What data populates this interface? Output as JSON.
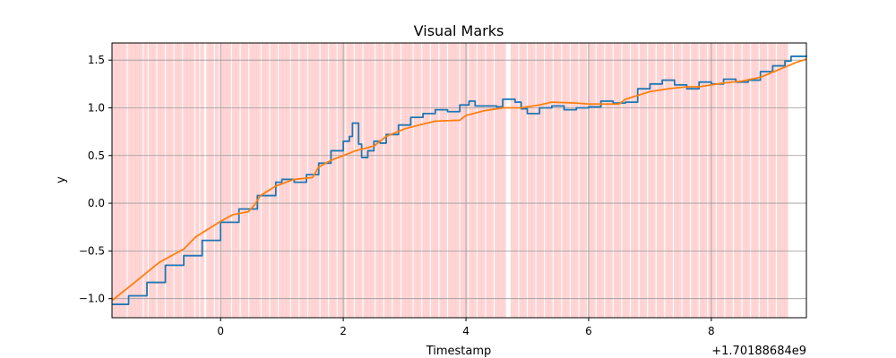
{
  "chart_data": {
    "type": "line",
    "title": "Visual Marks",
    "xlabel": "Timestamp",
    "ylabel": "y",
    "x_offset_label": "+1.70188684e9",
    "xlim": [
      -1.77,
      9.55
    ],
    "ylim": [
      -1.2,
      1.68
    ],
    "xticks": [
      0,
      2,
      4,
      6,
      8
    ],
    "xtick_labels": [
      "0",
      "2",
      "4",
      "6",
      "8"
    ],
    "yticks": [
      -1.0,
      -0.5,
      0.0,
      0.5,
      1.0,
      1.5
    ],
    "ytick_labels": [
      "−1.0",
      "−0.5",
      "0.0",
      "0.5",
      "1.0",
      "1.5"
    ],
    "grid": true,
    "mark_color": "#ffb3b3",
    "series": [
      {
        "color": "#1f77b4",
        "style": "steps",
        "points": [
          [
            -1.77,
            -1.06
          ],
          [
            -1.5,
            -0.97
          ],
          [
            -1.2,
            -0.83
          ],
          [
            -0.9,
            -0.65
          ],
          [
            -0.6,
            -0.55
          ],
          [
            -0.3,
            -0.39
          ],
          [
            0.0,
            -0.2
          ],
          [
            0.3,
            -0.06
          ],
          [
            0.6,
            0.08
          ],
          [
            0.9,
            0.22
          ],
          [
            1.0,
            0.25
          ],
          [
            1.2,
            0.22
          ],
          [
            1.4,
            0.3
          ],
          [
            1.6,
            0.42
          ],
          [
            1.8,
            0.55
          ],
          [
            2.0,
            0.65
          ],
          [
            2.1,
            0.7
          ],
          [
            2.15,
            0.84
          ],
          [
            2.22,
            0.84
          ],
          [
            2.25,
            0.62
          ],
          [
            2.3,
            0.48
          ],
          [
            2.4,
            0.55
          ],
          [
            2.5,
            0.65
          ],
          [
            2.6,
            0.63
          ],
          [
            2.7,
            0.72
          ],
          [
            2.9,
            0.82
          ],
          [
            3.1,
            0.9
          ],
          [
            3.3,
            0.94
          ],
          [
            3.5,
            0.98
          ],
          [
            3.7,
            0.96
          ],
          [
            3.9,
            1.03
          ],
          [
            4.05,
            1.07
          ],
          [
            4.15,
            1.02
          ],
          [
            4.3,
            1.02
          ],
          [
            4.5,
            1.01
          ],
          [
            4.6,
            1.09
          ],
          [
            4.8,
            1.06
          ],
          [
            4.9,
            0.99
          ],
          [
            5.0,
            0.94
          ],
          [
            5.2,
            1.0
          ],
          [
            5.4,
            1.02
          ],
          [
            5.6,
            0.98
          ],
          [
            5.8,
            1.0
          ],
          [
            6.0,
            1.01
          ],
          [
            6.2,
            1.07
          ],
          [
            6.4,
            1.05
          ],
          [
            6.6,
            1.06
          ],
          [
            6.8,
            1.2
          ],
          [
            7.0,
            1.25
          ],
          [
            7.2,
            1.29
          ],
          [
            7.4,
            1.24
          ],
          [
            7.6,
            1.2
          ],
          [
            7.8,
            1.27
          ],
          [
            8.0,
            1.25
          ],
          [
            8.2,
            1.3
          ],
          [
            8.4,
            1.27
          ],
          [
            8.6,
            1.29
          ],
          [
            8.8,
            1.38
          ],
          [
            9.0,
            1.44
          ],
          [
            9.2,
            1.49
          ],
          [
            9.3,
            1.54
          ],
          [
            9.55,
            1.55
          ]
        ]
      },
      {
        "color": "#ff7f0e",
        "style": "line",
        "points": [
          [
            -1.77,
            -1.02
          ],
          [
            -1.4,
            -0.83
          ],
          [
            -1.0,
            -0.62
          ],
          [
            -0.6,
            -0.48
          ],
          [
            -0.4,
            -0.35
          ],
          [
            -0.2,
            -0.27
          ],
          [
            0.0,
            -0.19
          ],
          [
            0.2,
            -0.12
          ],
          [
            0.45,
            -0.09
          ],
          [
            0.55,
            -0.02
          ],
          [
            0.65,
            0.08
          ],
          [
            0.9,
            0.18
          ],
          [
            1.2,
            0.25
          ],
          [
            1.5,
            0.27
          ],
          [
            1.6,
            0.38
          ],
          [
            1.8,
            0.45
          ],
          [
            2.0,
            0.5
          ],
          [
            2.2,
            0.55
          ],
          [
            2.5,
            0.6
          ],
          [
            2.7,
            0.7
          ],
          [
            3.0,
            0.78
          ],
          [
            3.3,
            0.83
          ],
          [
            3.5,
            0.86
          ],
          [
            3.9,
            0.87
          ],
          [
            4.0,
            0.92
          ],
          [
            4.3,
            0.97
          ],
          [
            4.6,
            1.0
          ],
          [
            4.9,
            1.0
          ],
          [
            5.2,
            1.03
          ],
          [
            5.4,
            1.06
          ],
          [
            5.8,
            1.05
          ],
          [
            6.0,
            1.04
          ],
          [
            6.5,
            1.04
          ],
          [
            6.6,
            1.09
          ],
          [
            7.0,
            1.17
          ],
          [
            7.3,
            1.2
          ],
          [
            7.6,
            1.22
          ],
          [
            7.8,
            1.22
          ],
          [
            8.0,
            1.24
          ],
          [
            8.2,
            1.26
          ],
          [
            8.5,
            1.28
          ],
          [
            8.8,
            1.32
          ],
          [
            9.1,
            1.4
          ],
          [
            9.4,
            1.48
          ],
          [
            9.55,
            1.51
          ]
        ]
      }
    ],
    "vertical_marks": [
      -1.74,
      -1.68,
      -1.62,
      -1.56,
      -1.48,
      -1.42,
      -1.36,
      -1.3,
      -1.22,
      -1.14,
      -1.08,
      -1.0,
      -0.94,
      -0.86,
      -0.8,
      -0.72,
      -0.66,
      -0.58,
      -0.52,
      -0.46,
      -0.38,
      -0.3,
      -0.2,
      -0.14,
      -0.06,
      0.02,
      0.08,
      0.14,
      0.22,
      0.28,
      0.36,
      0.42,
      0.5,
      0.56,
      0.62,
      0.7,
      0.76,
      0.84,
      0.9,
      0.98,
      1.04,
      1.1,
      1.18,
      1.24,
      1.32,
      1.38,
      1.46,
      1.52,
      1.58,
      1.66,
      1.72,
      1.8,
      1.86,
      1.94,
      2.0,
      2.08,
      2.14,
      2.22,
      2.28,
      2.36,
      2.42,
      2.48,
      2.56,
      2.62,
      2.7,
      2.76,
      2.84,
      2.9,
      2.98,
      3.04,
      3.1,
      3.18,
      3.24,
      3.32,
      3.38,
      3.46,
      3.52,
      3.6,
      3.66,
      3.74,
      3.8,
      3.86,
      3.94,
      4.0,
      4.08,
      4.14,
      4.22,
      4.28,
      4.36,
      4.42,
      4.5,
      4.56,
      4.62,
      4.76,
      4.82,
      4.9,
      4.96,
      5.04,
      5.1,
      5.18,
      5.24,
      5.32,
      5.38,
      5.46,
      5.52,
      5.6,
      5.66,
      5.74,
      5.8,
      5.88,
      5.94,
      6.02,
      6.08,
      6.16,
      6.22,
      6.3,
      6.36,
      6.44,
      6.5,
      6.58,
      6.64,
      6.72,
      6.78,
      6.86,
      6.92,
      7.0,
      7.06,
      7.14,
      7.2,
      7.28,
      7.34,
      7.42,
      7.48,
      7.56,
      7.62,
      7.7,
      7.76,
      7.84,
      7.9,
      7.98,
      8.04,
      8.12,
      8.18,
      8.26,
      8.32,
      8.4,
      8.46,
      8.54,
      8.6,
      8.68,
      8.74,
      8.82,
      8.88,
      8.96,
      9.02,
      9.1,
      9.16,
      9.22
    ]
  }
}
